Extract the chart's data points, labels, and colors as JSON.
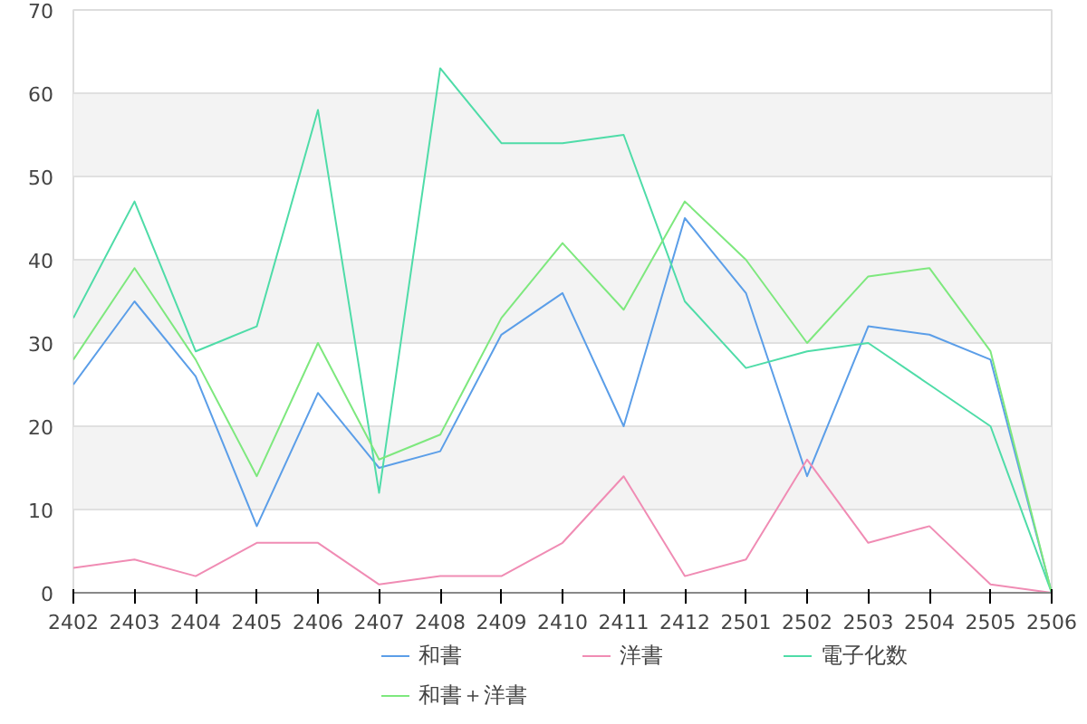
{
  "chart_data": {
    "type": "line",
    "categories": [
      "2402",
      "2403",
      "2404",
      "2405",
      "2406",
      "2407",
      "2408",
      "2409",
      "2410",
      "2411",
      "2412",
      "2501",
      "2502",
      "2503",
      "2504",
      "2505",
      "2506"
    ],
    "series": [
      {
        "name": "和書",
        "color": "#5b9ee8",
        "values": [
          25,
          35,
          26,
          8,
          24,
          15,
          17,
          31,
          36,
          20,
          45,
          36,
          14,
          32,
          31,
          28,
          0
        ]
      },
      {
        "name": "洋書",
        "color": "#f08cb4",
        "values": [
          3,
          4,
          2,
          6,
          6,
          1,
          2,
          2,
          6,
          14,
          2,
          4,
          16,
          6,
          8,
          1,
          0
        ]
      },
      {
        "name": "電子化数",
        "color": "#4fdca8",
        "values": [
          33,
          47,
          29,
          32,
          58,
          12,
          63,
          54,
          54,
          55,
          35,
          27,
          29,
          30,
          25,
          20,
          0
        ]
      },
      {
        "name": "和書＋洋書",
        "color": "#7ee87e",
        "values": [
          28,
          39,
          28,
          14,
          30,
          16,
          19,
          33,
          42,
          34,
          47,
          40,
          30,
          38,
          39,
          29,
          0
        ]
      }
    ],
    "ylim": [
      0,
      70
    ],
    "yticks": [
      0,
      10,
      20,
      30,
      40,
      50,
      60,
      70
    ],
    "grid": "y",
    "legend": "bottom",
    "marker": "none",
    "line_style": "solid"
  }
}
